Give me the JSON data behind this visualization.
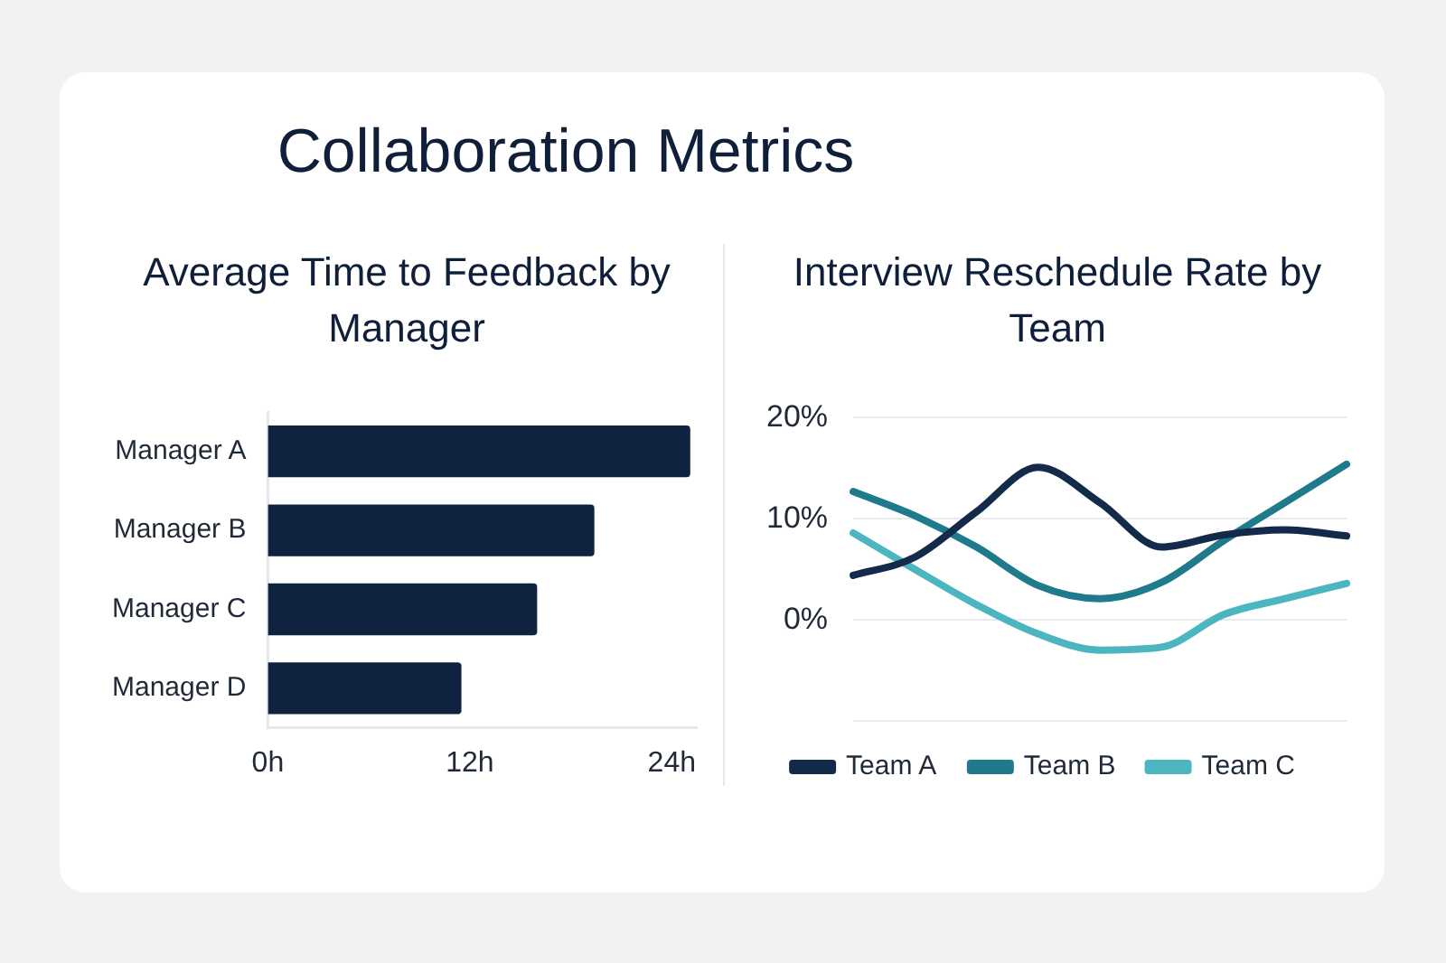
{
  "chart_data": [
    {
      "type": "other",
      "title": "Collaboration Metrics"
    },
    {
      "type": "bar",
      "title": "Average Time to Feedback by Manager",
      "orientation": "horizontal",
      "categories": [
        "Manager A",
        "Manager B",
        "Manager C",
        "Manager D"
      ],
      "values": [
        25.1,
        19.4,
        16.0,
        11.5
      ],
      "color": "#0f2340",
      "xlim": [
        0,
        25.5
      ],
      "xticks": [
        {
          "value": 0,
          "label": "0h"
        },
        {
          "value": 12,
          "label": "12h"
        },
        {
          "value": 24,
          "label": "24h"
        }
      ],
      "grid": false,
      "legend": false
    },
    {
      "type": "line",
      "title": "Interview Reschedule Rate by Team",
      "categories": [
        null,
        null,
        null,
        null,
        null,
        null,
        null,
        null,
        null
      ],
      "series": [
        {
          "name": "Team A",
          "color": "#142a4a",
          "values": [
            4.4,
            6.2,
            10.7,
            15.1,
            11.6,
            7.2,
            8.4,
            8.9,
            8.3
          ]
        },
        {
          "name": "Team B",
          "color": "#1f7a8c",
          "values": [
            12.7,
            10.3,
            7.2,
            3.4,
            2.1,
            3.7,
            7.8,
            11.6,
            15.4
          ]
        },
        {
          "name": "Team C",
          "color": "#4bb6c0",
          "values": [
            8.6,
            5.0,
            1.5,
            -1.4,
            -3.0,
            -2.7,
            0.5,
            2.1,
            3.6
          ]
        }
      ],
      "ylim": [
        -10,
        20
      ],
      "yticks": [
        {
          "value": 20,
          "label": "20%"
        },
        {
          "value": 10,
          "label": "10%"
        },
        {
          "value": 0,
          "label": "0%"
        },
        {
          "value": -10,
          "label": null
        }
      ],
      "grid": "y",
      "legend": "bottom",
      "tick_labels": "y",
      "marker": "none",
      "line_style": "solid"
    }
  ]
}
